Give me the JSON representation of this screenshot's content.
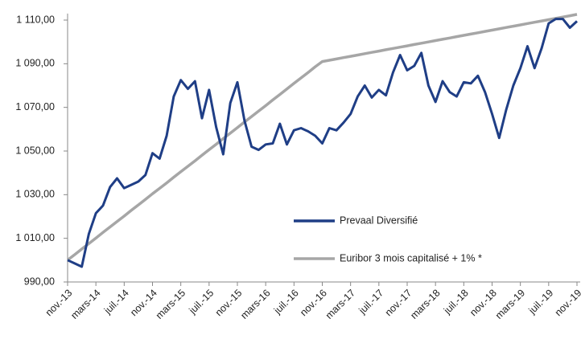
{
  "chart_data": {
    "type": "line",
    "categories": [
      "nov.-13",
      null,
      null,
      null,
      "mars-14",
      null,
      null,
      null,
      "juil.-14",
      null,
      null,
      null,
      "nov.-14",
      null,
      null,
      null,
      "mars-15",
      null,
      null,
      null,
      "juil.-15",
      null,
      null,
      null,
      "nov.-15",
      null,
      null,
      null,
      "mars-16",
      null,
      null,
      null,
      "juil.-16",
      null,
      null,
      null,
      "nov.-16",
      null,
      null,
      null,
      "mars-17",
      null,
      null,
      null,
      "juil.-17",
      null,
      null,
      null,
      "nov.-17",
      null,
      null,
      null,
      "mars-18",
      null,
      null,
      null,
      "juil.-18",
      null,
      null,
      null,
      "nov.-18",
      null,
      null,
      null,
      "mars-19",
      null,
      null,
      null,
      "juil.-19",
      null,
      null,
      null,
      "nov.-19"
    ],
    "series": [
      {
        "name": "Prevaal Diversifié",
        "color": "#1f3e86",
        "values": [
          1000,
          998.5,
          997,
          1012,
          1021.5,
          1025,
          1033.5,
          1037.5,
          1033,
          1034.5,
          1036,
          1039,
          1049,
          1046.5,
          1057,
          1075,
          1082.5,
          1078.5,
          1082,
          1065,
          1078,
          1061,
          1048.5,
          1072,
          1081.5,
          1064,
          1052,
          1050.5,
          1053,
          1053.5,
          1062.5,
          1053,
          1059.5,
          1060.5,
          1059,
          1057,
          1053.5,
          1060.5,
          1059.5,
          1063,
          1067,
          1075,
          1080,
          1074.5,
          1078,
          1075.5,
          1086,
          1094,
          1087,
          1089,
          1095,
          1080,
          1072.5,
          1082,
          1077,
          1075,
          1081.5,
          1081,
          1084.5,
          1077,
          1067,
          1056,
          1069,
          1080,
          1088,
          1098,
          1088,
          1097,
          1108.5,
          1110.5,
          1110.5,
          1106.5,
          1109.5
        ]
      },
      {
        "name": "Euribor 3 mois capitalisé + 1% *",
        "color": "#a6a6a6",
        "values": [
          1000,
          1002.5,
          1005.1,
          1007.6,
          1010.1,
          1012.7,
          1015.2,
          1017.7,
          1020.2,
          1022.8,
          1025.3,
          1027.8,
          1030.4,
          1032.9,
          1035.4,
          1038,
          1040.5,
          1043,
          1045.5,
          1048.1,
          1050.6,
          1053.1,
          1055.7,
          1058.2,
          1060.7,
          1063.3,
          1065.8,
          1068.3,
          1070.8,
          1073.4,
          1075.9,
          1078.4,
          1081,
          1083.5,
          1086,
          1088.6,
          1091,
          1091.6,
          1092.2,
          1092.8,
          1093.4,
          1094,
          1094.6,
          1095.2,
          1095.8,
          1096.4,
          1097,
          1097.6,
          1098.2,
          1098.8,
          1099.4,
          1100,
          1100.6,
          1101.2,
          1101.8,
          1102.4,
          1103,
          1103.6,
          1104.2,
          1104.8,
          1105.4,
          1106,
          1106.6,
          1107.2,
          1107.8,
          1108.4,
          1109,
          1109.6,
          1110.2,
          1110.8,
          1111.4,
          1112,
          1112.6
        ]
      }
    ],
    "ylim": [
      990,
      1113
    ],
    "yticks": [
      {
        "value": 990,
        "label": "990,00"
      },
      {
        "value": 1010,
        "label": "1 010,00"
      },
      {
        "value": 1030,
        "label": "1 030,00"
      },
      {
        "value": 1050,
        "label": "1 050,00"
      },
      {
        "value": 1070,
        "label": "1 070,00"
      },
      {
        "value": 1090,
        "label": "1 090,00"
      },
      {
        "value": 1110,
        "label": "1 110,00"
      }
    ],
    "grid": false
  }
}
